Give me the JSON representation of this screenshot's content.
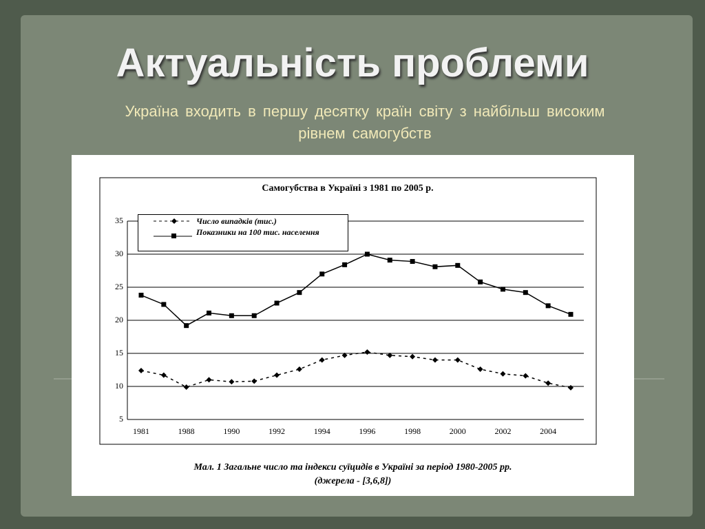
{
  "slide": {
    "title": "Актуальність проблеми",
    "subtitle": "Україна входить  в  першу  десятку  країн  світу  з найбільш  високим  рівнем  самогубств",
    "caption": [
      "Мал. 1 Загальне число та індекси суїцидів в Україні за період 1980-2005 рр.",
      "(джерела - [3,6,8])"
    ]
  },
  "chart_data": {
    "type": "line",
    "title": "Самогубства в Україні з 1981 по 2005 р.",
    "categories": [
      "1981",
      null,
      "1988",
      null,
      "1990",
      null,
      "1992",
      null,
      "1994",
      null,
      "1996",
      null,
      "1998",
      null,
      "2000",
      null,
      "2002",
      null,
      "2004",
      null
    ],
    "series": [
      {
        "name": "Число випадків (тис.)",
        "color": "#000000",
        "dashed": true,
        "values": [
          12.4,
          11.7,
          9.9,
          11.0,
          10.7,
          10.8,
          11.7,
          12.6,
          14.0,
          14.7,
          15.2,
          14.7,
          14.5,
          14.0,
          14.0,
          12.6,
          11.9,
          11.6,
          10.5,
          9.8
        ]
      },
      {
        "name": "Показники на 100 тис. населення",
        "color": "#000000",
        "dashed": false,
        "values": [
          23.8,
          22.4,
          19.2,
          21.1,
          20.7,
          20.7,
          22.6,
          24.2,
          27.0,
          28.4,
          30.0,
          29.1,
          28.9,
          28.1,
          28.3,
          25.8,
          24.7,
          24.2,
          22.2,
          20.9
        ]
      }
    ],
    "ylim": [
      5,
      35
    ],
    "yticks": [
      5,
      10,
      15,
      20,
      25,
      30,
      35
    ],
    "grid": true
  }
}
